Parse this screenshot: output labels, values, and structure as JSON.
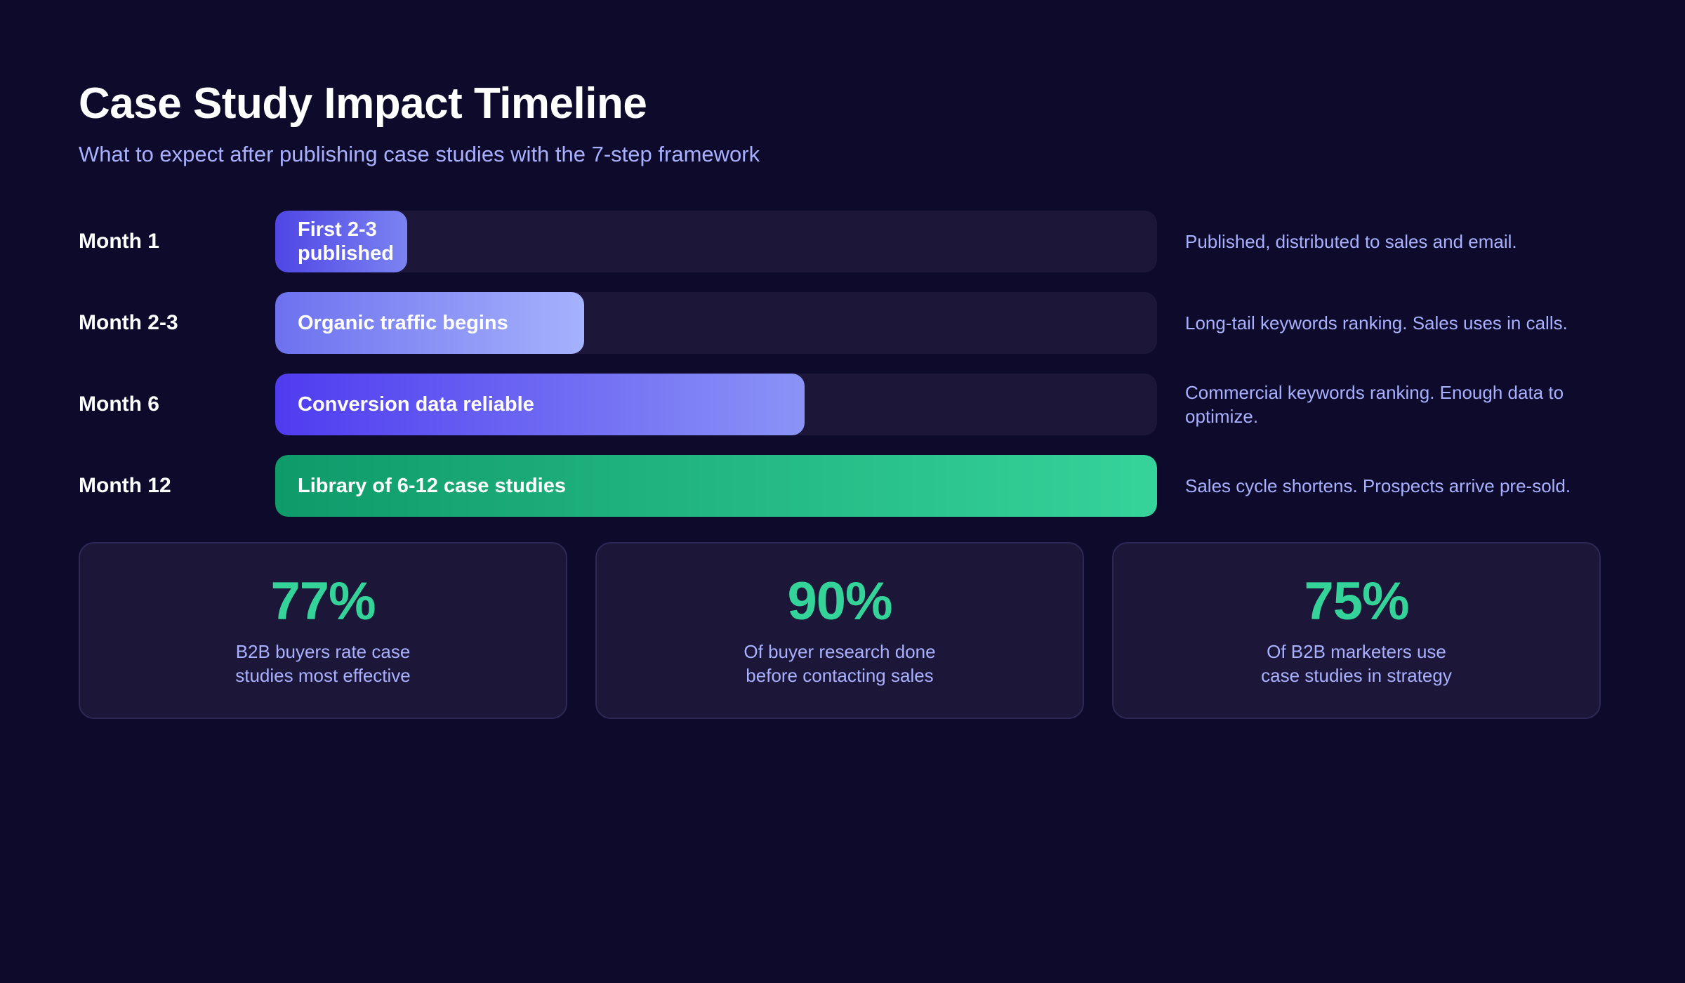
{
  "header": {
    "title": "Case Study Impact Timeline",
    "subtitle": "What to expect after publishing case studies with the 7-step framework"
  },
  "chart_data": {
    "type": "bar",
    "orientation": "horizontal",
    "categories": [
      "Month 1",
      "Month 2-3",
      "Month 6",
      "Month 12"
    ],
    "values": [
      15,
      35,
      60,
      100
    ],
    "value_unit": "percent of full track",
    "bar_labels": [
      "First 2-3 published",
      "Organic traffic begins",
      "Conversion data reliable",
      "Library of 6-12 case studies"
    ],
    "notes": [
      "Published, distributed to sales and email.",
      "Long-tail keywords ranking. Sales uses in calls.",
      "Commercial keywords ranking. Enough data to optimize.",
      "Sales cycle shortens. Prospects arrive pre-sold."
    ],
    "xlim": [
      0,
      100
    ],
    "grid": false,
    "legend": "none",
    "colors": [
      [
        "#4f46e5",
        "#7b83f2"
      ],
      [
        "#6d71ef",
        "#a5b2fc"
      ],
      [
        "#4f3cf0",
        "#8b93f6"
      ],
      [
        "#0f9a6a",
        "#36d39b"
      ]
    ]
  },
  "stats": [
    {
      "value": "77%",
      "label": "B2B buyers rate case\nstudies most effective"
    },
    {
      "value": "90%",
      "label": "Of buyer research done\nbefore contacting sales"
    },
    {
      "value": "75%",
      "label": "Of B2B marketers use\ncase studies in strategy"
    }
  ],
  "colors": {
    "background": "#0d0a2b",
    "track": "#1c1738",
    "accent_text": "#a8b0ff",
    "stat_value": "#34d399"
  }
}
